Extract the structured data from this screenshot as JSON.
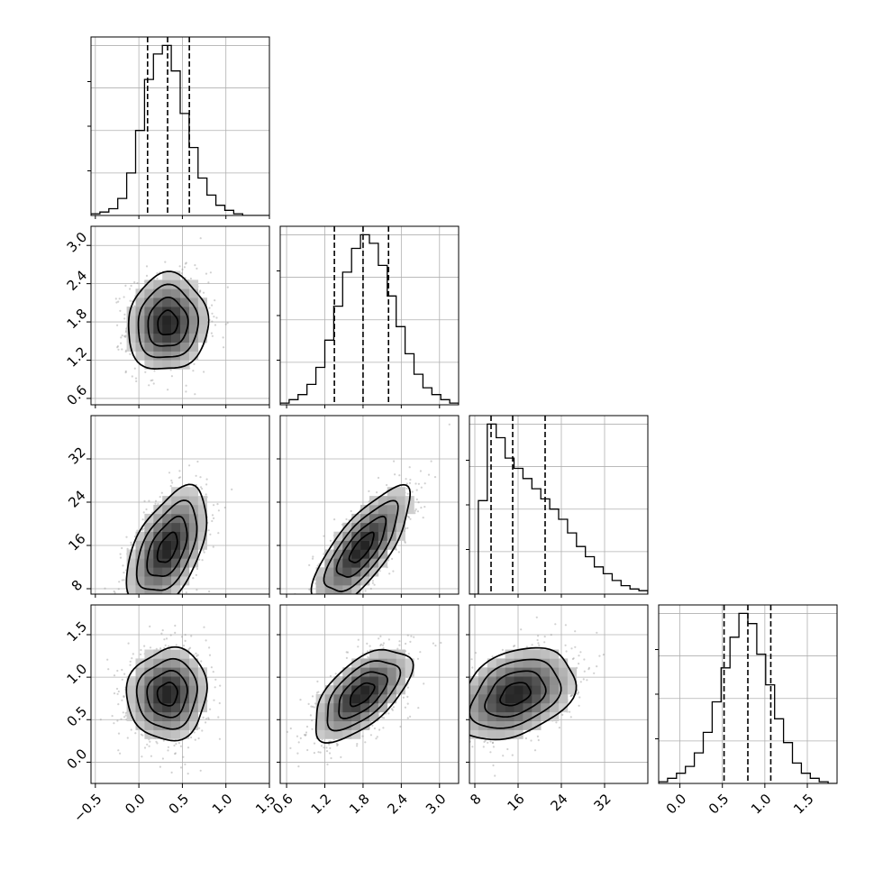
{
  "chart_data": {
    "type": "corner",
    "grid": true,
    "parameters": [
      {
        "range": [
          -0.55,
          1.5
        ],
        "ticks": [
          -0.5,
          0.0,
          0.5,
          1.0,
          1.5
        ],
        "tick_labels": [
          "−0.5",
          "0.0",
          "0.5",
          "1.0",
          "1.5"
        ],
        "quantiles": [
          0.1,
          0.33,
          0.58
        ]
      },
      {
        "range": [
          0.5,
          3.3
        ],
        "ticks": [
          0.6,
          1.2,
          1.8,
          2.4,
          3.0
        ],
        "tick_labels": [
          "0.6",
          "1.2",
          "1.8",
          "2.4",
          "3.0"
        ],
        "quantiles": [
          1.35,
          1.8,
          2.2
        ]
      },
      {
        "range": [
          7,
          40
        ],
        "ticks": [
          8,
          16,
          24,
          32
        ],
        "tick_labels": [
          "8",
          "16",
          "24",
          "32"
        ],
        "quantiles": [
          11,
          15,
          21
        ]
      },
      {
        "range": [
          -0.25,
          1.85
        ],
        "ticks": [
          0.0,
          0.5,
          1.0,
          1.5
        ],
        "tick_labels": [
          "0.0",
          "0.5",
          "1.0",
          "1.5"
        ],
        "quantiles": [
          0.52,
          0.8,
          1.07
        ]
      }
    ],
    "histograms": [
      {
        "counts": [
          1,
          2,
          4,
          10,
          25,
          50,
          80,
          95,
          100,
          85,
          60,
          40,
          22,
          12,
          6,
          3,
          1,
          0,
          0,
          0
        ]
      },
      {
        "counts": [
          1,
          3,
          6,
          12,
          22,
          38,
          58,
          78,
          92,
          100,
          95,
          82,
          64,
          46,
          30,
          18,
          10,
          6,
          3,
          1
        ]
      },
      {
        "counts": [
          0,
          55,
          100,
          92,
          80,
          74,
          68,
          62,
          56,
          50,
          44,
          36,
          28,
          22,
          16,
          12,
          8,
          5,
          3,
          2
        ]
      },
      {
        "counts": [
          1,
          3,
          6,
          10,
          18,
          30,
          48,
          68,
          86,
          100,
          94,
          76,
          58,
          38,
          24,
          12,
          6,
          3,
          1,
          0
        ]
      }
    ],
    "bivariate": [
      {
        "x": 0,
        "y": 1,
        "mean": [
          0.33,
          1.78
        ],
        "sd": [
          0.23,
          0.38
        ],
        "rho": 0.05
      },
      {
        "x": 0,
        "y": 2,
        "mean": [
          0.33,
          15.5
        ],
        "sd": [
          0.23,
          5.5
        ],
        "rho": 0.5
      },
      {
        "x": 1,
        "y": 2,
        "mean": [
          1.78,
          15.5
        ],
        "sd": [
          0.38,
          5.5
        ],
        "rho": 0.75
      },
      {
        "x": 0,
        "y": 3,
        "mean": [
          0.33,
          0.8
        ],
        "sd": [
          0.23,
          0.27
        ],
        "rho": 0.05
      },
      {
        "x": 1,
        "y": 3,
        "mean": [
          1.78,
          0.8
        ],
        "sd": [
          0.38,
          0.27
        ],
        "rho": 0.6
      },
      {
        "x": 2,
        "y": 3,
        "mean": [
          15.5,
          0.8
        ],
        "sd": [
          5.5,
          0.27
        ],
        "rho": 0.35
      }
    ],
    "contour_levels_sigma": [
      0.5,
      1.0,
      1.5,
      2.0
    ]
  }
}
